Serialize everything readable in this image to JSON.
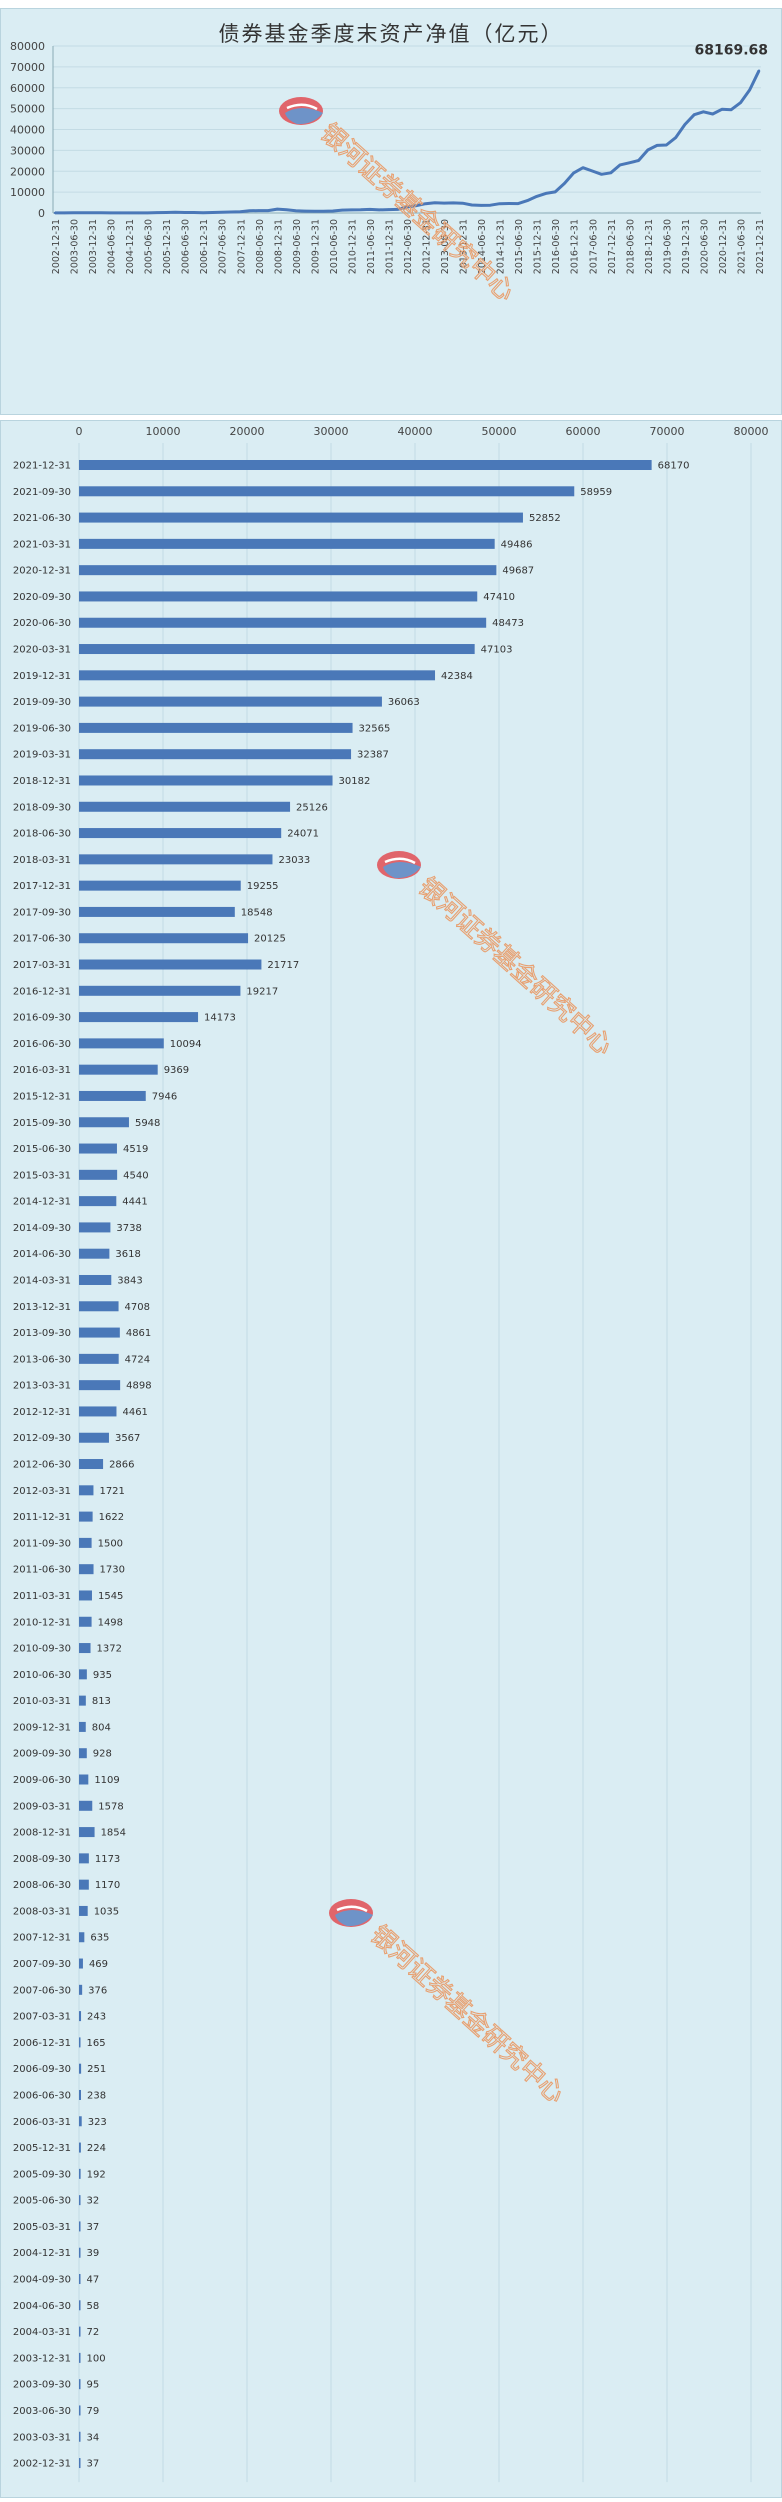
{
  "watermark": {
    "text": "银河证券基金研究中心",
    "icon": "galaxy-logo-icon"
  },
  "colors": {
    "background": "#daedf3",
    "series": "#4a78b8",
    "grid": "#c3dbe4",
    "text": "#333333",
    "watermark_text": "#e8a070",
    "logo_red": "#e0656b",
    "logo_blue": "#6e93c8"
  },
  "chart_data": [
    {
      "type": "line",
      "title": "债券基金季度末资产净值（亿元）",
      "ylim": [
        0,
        80000
      ],
      "yticks": [
        0,
        10000,
        20000,
        30000,
        40000,
        50000,
        60000,
        70000,
        80000
      ],
      "grid": true,
      "xtick_labels": [
        "2002-12-31",
        "2003-06-30",
        "2003-12-31",
        "2004-06-30",
        "2004-12-31",
        "2005-06-30",
        "2005-12-31",
        "2006-06-30",
        "2006-12-31",
        "2007-06-30",
        "2007-12-31",
        "2008-06-30",
        "2008-12-31",
        "2009-06-30",
        "2009-12-31",
        "2010-06-30",
        "2010-12-31",
        "2011-06-30",
        "2011-12-31",
        "2012-06-30",
        "2012-12-31",
        "2013-06-30",
        "2013-12-31",
        "2014-06-30",
        "2014-12-31",
        "2015-06-30",
        "2015-12-31",
        "2016-06-30",
        "2016-12-31",
        "2017-06-30",
        "2017-12-31",
        "2018-06-30",
        "2018-12-31",
        "2019-06-30",
        "2019-12-31",
        "2020-06-30",
        "2020-12-31",
        "2021-06-30",
        "2021-12-31"
      ],
      "x": [
        "2002-12-31",
        "2003-03-31",
        "2003-06-30",
        "2003-09-30",
        "2003-12-31",
        "2004-03-31",
        "2004-06-30",
        "2004-09-30",
        "2004-12-31",
        "2005-03-31",
        "2005-06-30",
        "2005-09-30",
        "2005-12-31",
        "2006-03-31",
        "2006-06-30",
        "2006-09-30",
        "2006-12-31",
        "2007-03-31",
        "2007-06-30",
        "2007-09-30",
        "2007-12-31",
        "2008-03-31",
        "2008-06-30",
        "2008-09-30",
        "2008-12-31",
        "2009-03-31",
        "2009-06-30",
        "2009-09-30",
        "2009-12-31",
        "2010-03-31",
        "2010-06-30",
        "2010-09-30",
        "2010-12-31",
        "2011-03-31",
        "2011-06-30",
        "2011-09-30",
        "2011-12-31",
        "2012-03-31",
        "2012-06-30",
        "2012-09-30",
        "2012-12-31",
        "2013-03-31",
        "2013-06-30",
        "2013-09-30",
        "2013-12-31",
        "2014-03-31",
        "2014-06-30",
        "2014-09-30",
        "2014-12-31",
        "2015-03-31",
        "2015-06-30",
        "2015-09-30",
        "2015-12-31",
        "2016-03-31",
        "2016-06-30",
        "2016-09-30",
        "2016-12-31",
        "2017-03-31",
        "2017-06-30",
        "2017-09-30",
        "2017-12-31",
        "2018-03-31",
        "2018-06-30",
        "2018-09-30",
        "2018-12-31",
        "2019-03-31",
        "2019-06-30",
        "2019-09-30",
        "2019-12-31",
        "2020-03-31",
        "2020-06-30",
        "2020-09-30",
        "2020-12-31",
        "2021-03-31",
        "2021-06-30",
        "2021-09-30",
        "2021-12-31"
      ],
      "values": [
        37,
        34,
        79,
        95,
        100,
        72,
        58,
        47,
        39,
        37,
        32,
        192,
        224,
        323,
        238,
        251,
        165,
        243,
        376,
        469,
        635,
        1035,
        1170,
        1173,
        1854,
        1578,
        1109,
        928,
        804,
        813,
        935,
        1372,
        1498,
        1545,
        1730,
        1500,
        1622,
        1721,
        2866,
        3567,
        4461,
        4898,
        4724,
        4861,
        4708,
        3843,
        3618,
        3738,
        4441,
        4540,
        4519,
        5948,
        7946,
        9369,
        10094,
        14173,
        19217,
        21717,
        20125,
        18548,
        19255,
        23033,
        24071,
        25126,
        30182,
        32387,
        32565,
        36063,
        42384,
        47103,
        48473,
        47410,
        49687,
        49486,
        52852,
        58959,
        68170
      ],
      "annotations": [
        {
          "x": "2021-12-31",
          "text": "68169.68"
        }
      ]
    },
    {
      "type": "bar",
      "orientation": "horizontal",
      "xlim": [
        0,
        80000
      ],
      "xticks": [
        0,
        10000,
        20000,
        30000,
        40000,
        50000,
        60000,
        70000,
        80000
      ],
      "grid": true,
      "categories": [
        "2021-12-31",
        "2021-09-30",
        "2021-06-30",
        "2021-03-31",
        "2020-12-31",
        "2020-09-30",
        "2020-06-30",
        "2020-03-31",
        "2019-12-31",
        "2019-09-30",
        "2019-06-30",
        "2019-03-31",
        "2018-12-31",
        "2018-09-30",
        "2018-06-30",
        "2018-03-31",
        "2017-12-31",
        "2017-09-30",
        "2017-06-30",
        "2017-03-31",
        "2016-12-31",
        "2016-09-30",
        "2016-06-30",
        "2016-03-31",
        "2015-12-31",
        "2015-09-30",
        "2015-06-30",
        "2015-03-31",
        "2014-12-31",
        "2014-09-30",
        "2014-06-30",
        "2014-03-31",
        "2013-12-31",
        "2013-09-30",
        "2013-06-30",
        "2013-03-31",
        "2012-12-31",
        "2012-09-30",
        "2012-06-30",
        "2012-03-31",
        "2011-12-31",
        "2011-09-30",
        "2011-06-30",
        "2011-03-31",
        "2010-12-31",
        "2010-09-30",
        "2010-06-30",
        "2010-03-31",
        "2009-12-31",
        "2009-09-30",
        "2009-06-30",
        "2009-03-31",
        "2008-12-31",
        "2008-09-30",
        "2008-06-30",
        "2008-03-31",
        "2007-12-31",
        "2007-09-30",
        "2007-06-30",
        "2007-03-31",
        "2006-12-31",
        "2006-09-30",
        "2006-06-30",
        "2006-03-31",
        "2005-12-31",
        "2005-09-30",
        "2005-06-30",
        "2005-03-31",
        "2004-12-31",
        "2004-09-30",
        "2004-06-30",
        "2004-03-31",
        "2003-12-31",
        "2003-09-30",
        "2003-06-30",
        "2003-03-31",
        "2002-12-31"
      ],
      "values": [
        68170,
        58959,
        52852,
        49486,
        49687,
        47410,
        48473,
        47103,
        42384,
        36063,
        32565,
        32387,
        30182,
        25126,
        24071,
        23033,
        19255,
        18548,
        20125,
        21717,
        19217,
        14173,
        10094,
        9369,
        7946,
        5948,
        4519,
        4540,
        4441,
        3738,
        3618,
        3843,
        4708,
        4861,
        4724,
        4898,
        4461,
        3567,
        2866,
        1721,
        1622,
        1500,
        1730,
        1545,
        1498,
        1372,
        935,
        813,
        804,
        928,
        1109,
        1578,
        1854,
        1173,
        1170,
        1035,
        635,
        469,
        376,
        243,
        165,
        251,
        238,
        323,
        224,
        192,
        32,
        37,
        39,
        47,
        58,
        72,
        100,
        95,
        79,
        34,
        37
      ]
    }
  ]
}
